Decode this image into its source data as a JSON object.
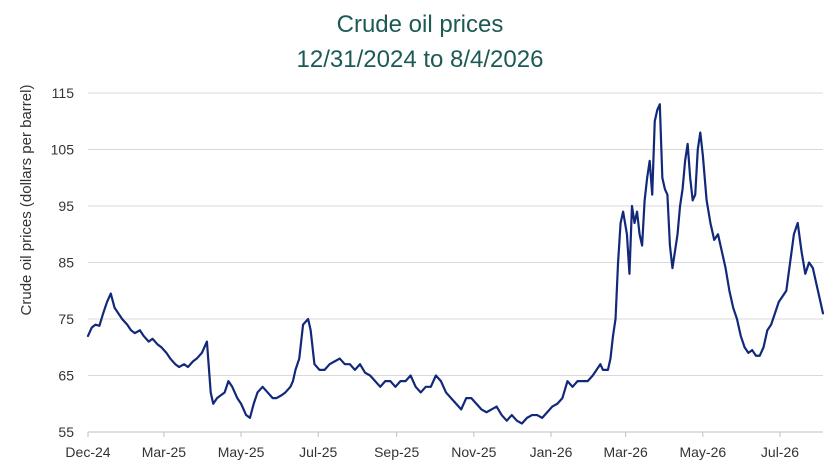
{
  "colors": {
    "title": "#1d5a55",
    "line": "#12297a",
    "grid": "#d9d9d9",
    "text": "#333333"
  },
  "chart_data": {
    "type": "line",
    "title": "Crude oil prices",
    "subtitle": "12/31/2024 to 8/4/2026",
    "xlabel": "",
    "ylabel": "Crude oil prices (dollars per barrel)",
    "ylim": [
      55,
      115
    ],
    "yticks": [
      55,
      65,
      75,
      85,
      95,
      105,
      115
    ],
    "xlim": [
      "2024-12-31",
      "2026-08-04"
    ],
    "xticks": [
      {
        "date": "2024-12-31",
        "label": "Dec-24"
      },
      {
        "date": "2025-03-01",
        "label": "Mar-25"
      },
      {
        "date": "2025-05-01",
        "label": "May-25"
      },
      {
        "date": "2025-07-01",
        "label": "Jul-25"
      },
      {
        "date": "2025-09-01",
        "label": "Sep-25"
      },
      {
        "date": "2025-11-01",
        "label": "Nov-25"
      },
      {
        "date": "2026-01-01",
        "label": "Jan-26"
      },
      {
        "date": "2026-03-01",
        "label": "Mar-26"
      },
      {
        "date": "2026-05-01",
        "label": "May-26"
      },
      {
        "date": "2026-07-01",
        "label": "Jul-26"
      }
    ],
    "grid": true,
    "legend": "none",
    "series": [
      {
        "x": [
          "2024-12-31",
          "2025-01-03",
          "2025-01-06",
          "2025-01-09",
          "2025-01-12",
          "2025-01-15",
          "2025-01-18",
          "2025-01-21",
          "2025-01-24",
          "2025-01-27",
          "2025-01-31",
          "2025-02-03",
          "2025-02-06",
          "2025-02-10",
          "2025-02-13",
          "2025-02-17",
          "2025-02-20",
          "2025-02-24",
          "2025-02-27",
          "2025-03-03",
          "2025-03-06",
          "2025-03-10",
          "2025-03-13",
          "2025-03-17",
          "2025-03-20",
          "2025-03-24",
          "2025-03-27",
          "2025-03-31",
          "2025-04-02",
          "2025-04-04",
          "2025-04-07",
          "2025-04-09",
          "2025-04-12",
          "2025-04-15",
          "2025-04-18",
          "2025-04-21",
          "2025-04-24",
          "2025-04-28",
          "2025-05-01",
          "2025-05-05",
          "2025-05-08",
          "2025-05-11",
          "2025-05-14",
          "2025-05-18",
          "2025-05-22",
          "2025-05-26",
          "2025-05-29",
          "2025-06-02",
          "2025-06-05",
          "2025-06-09",
          "2025-06-11",
          "2025-06-13",
          "2025-06-16",
          "2025-06-19",
          "2025-06-23",
          "2025-06-25",
          "2025-06-28",
          "2025-07-02",
          "2025-07-06",
          "2025-07-10",
          "2025-07-14",
          "2025-07-18",
          "2025-07-22",
          "2025-07-26",
          "2025-07-30",
          "2025-08-03",
          "2025-08-07",
          "2025-08-11",
          "2025-08-15",
          "2025-08-19",
          "2025-08-23",
          "2025-08-27",
          "2025-08-31",
          "2025-09-04",
          "2025-09-08",
          "2025-09-12",
          "2025-09-16",
          "2025-09-20",
          "2025-09-24",
          "2025-09-28",
          "2025-10-02",
          "2025-10-06",
          "2025-10-10",
          "2025-10-14",
          "2025-10-18",
          "2025-10-22",
          "2025-10-26",
          "2025-10-30",
          "2025-11-03",
          "2025-11-07",
          "2025-11-11",
          "2025-11-15",
          "2025-11-19",
          "2025-11-23",
          "2025-11-27",
          "2025-12-01",
          "2025-12-05",
          "2025-12-09",
          "2025-12-13",
          "2025-12-17",
          "2025-12-21",
          "2025-12-25",
          "2025-12-29",
          "2026-01-02",
          "2026-01-06",
          "2026-01-10",
          "2026-01-14",
          "2026-01-18",
          "2026-01-22",
          "2026-01-26",
          "2026-01-30",
          "2026-02-03",
          "2026-02-06",
          "2026-02-09",
          "2026-02-11",
          "2026-02-13",
          "2026-02-15",
          "2026-02-17",
          "2026-02-19",
          "2026-02-21",
          "2026-02-23",
          "2026-02-25",
          "2026-02-27",
          "2026-03-02",
          "2026-03-04",
          "2026-03-06",
          "2026-03-08",
          "2026-03-10",
          "2026-03-12",
          "2026-03-14",
          "2026-03-16",
          "2026-03-18",
          "2026-03-20",
          "2026-03-22",
          "2026-03-24",
          "2026-03-26",
          "2026-03-28",
          "2026-03-30",
          "2026-04-01",
          "2026-04-03",
          "2026-04-05",
          "2026-04-07",
          "2026-04-09",
          "2026-04-11",
          "2026-04-13",
          "2026-04-15",
          "2026-04-17",
          "2026-04-19",
          "2026-04-21",
          "2026-04-23",
          "2026-04-25",
          "2026-04-27",
          "2026-04-29",
          "2026-05-01",
          "2026-05-04",
          "2026-05-07",
          "2026-05-10",
          "2026-05-13",
          "2026-05-16",
          "2026-05-19",
          "2026-05-22",
          "2026-05-25",
          "2026-05-28",
          "2026-05-31",
          "2026-06-03",
          "2026-06-06",
          "2026-06-09",
          "2026-06-12",
          "2026-06-15",
          "2026-06-18",
          "2026-06-21",
          "2026-06-24",
          "2026-06-27",
          "2026-06-30",
          "2026-07-03",
          "2026-07-06",
          "2026-07-09",
          "2026-07-12",
          "2026-07-15",
          "2026-07-18",
          "2026-07-21",
          "2026-07-24",
          "2026-07-27",
          "2026-07-30",
          "2026-08-02",
          "2026-08-04"
        ],
        "values": [
          72,
          73.5,
          74,
          73.8,
          76,
          78,
          79.5,
          77,
          76,
          75,
          74,
          73,
          72.5,
          73,
          72,
          71,
          71.5,
          70.5,
          70,
          69,
          68,
          67,
          66.5,
          67,
          66.5,
          67.5,
          68,
          69,
          70,
          71,
          62,
          60,
          61,
          61.5,
          62,
          64,
          63,
          61,
          60,
          58,
          57.5,
          60,
          62,
          63,
          62,
          61,
          61,
          61.5,
          62,
          63,
          64,
          66,
          68,
          74,
          75,
          73,
          67,
          66,
          66,
          67,
          67.5,
          68,
          67,
          67,
          66,
          67,
          65.5,
          65,
          64,
          63,
          64,
          64,
          63,
          64,
          64,
          65,
          63,
          62,
          63,
          63,
          65,
          64,
          62,
          61,
          60,
          59,
          61,
          61,
          60,
          59,
          58.5,
          59,
          59.5,
          58,
          57,
          58,
          57,
          56.5,
          57.5,
          58,
          58,
          57.5,
          58.5,
          59.5,
          60,
          61,
          64,
          63,
          64,
          64,
          64,
          65,
          66,
          67,
          66,
          66,
          66,
          68,
          72,
          75,
          85,
          92,
          94,
          90,
          83,
          95,
          92,
          94,
          90,
          88,
          96,
          100,
          103,
          97,
          110,
          112,
          113,
          100,
          98,
          97,
          88,
          84,
          87,
          90,
          95,
          98,
          103,
          106,
          100,
          96,
          97,
          105,
          108,
          104,
          96,
          92,
          89,
          90,
          87,
          84,
          80,
          77,
          75,
          72,
          70,
          69,
          69.5,
          68.5,
          68.5,
          70,
          73,
          74,
          76,
          78,
          79,
          80,
          85,
          90,
          92,
          87,
          83,
          85,
          84,
          81,
          78,
          76
        ]
      }
    ]
  }
}
